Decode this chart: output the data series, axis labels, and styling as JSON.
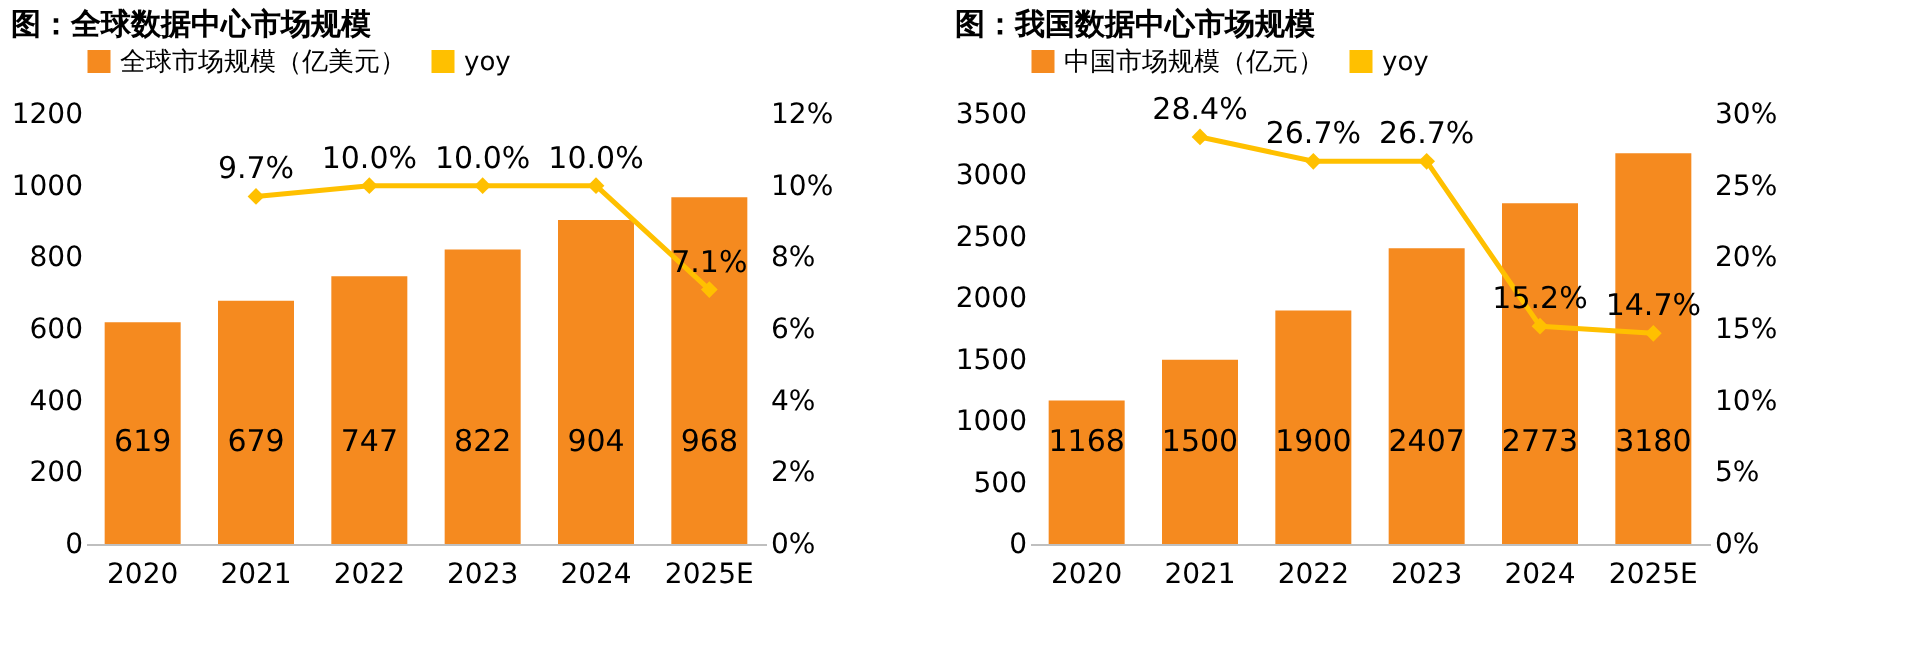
{
  "chart_data": [
    {
      "type": "bar",
      "title": "图：全球数据中心市场规模",
      "categories": [
        "2020",
        "2021",
        "2022",
        "2023",
        "2024",
        "2025E"
      ],
      "series": [
        {
          "name": "全球市场规模（亿美元）",
          "type": "bar",
          "color": "#f58a1f",
          "values": [
            619,
            679,
            747,
            822,
            904,
            968
          ]
        },
        {
          "name": "yoy",
          "type": "line",
          "axis": "y2",
          "color": "#ffc000",
          "values": [
            null,
            9.7,
            10.0,
            10.0,
            10.0,
            7.1
          ],
          "value_labels": [
            null,
            "9.7%",
            "10.0%",
            "10.0%",
            "10.0%",
            "7.1%"
          ]
        }
      ],
      "data_labels": true,
      "ylim": [
        0,
        1200
      ],
      "yticks": [
        0,
        200,
        400,
        600,
        800,
        1000,
        1200
      ],
      "y2lim": [
        0,
        12
      ],
      "y2ticks": [
        {
          "value": 0,
          "label": "0%"
        },
        {
          "value": 2,
          "label": "2%"
        },
        {
          "value": 4,
          "label": "4%"
        },
        {
          "value": 6,
          "label": "6%"
        },
        {
          "value": 8,
          "label": "8%"
        },
        {
          "value": 10,
          "label": "10%"
        },
        {
          "value": 12,
          "label": "12%"
        }
      ],
      "legend": "top",
      "grid": false,
      "marker": "diamond"
    },
    {
      "type": "bar",
      "title": "图：我国数据中心市场规模",
      "categories": [
        "2020",
        "2021",
        "2022",
        "2023",
        "2024",
        "2025E"
      ],
      "series": [
        {
          "name": "中国市场规模（亿元）",
          "type": "bar",
          "color": "#f58a1f",
          "values": [
            1168,
            1500,
            1900,
            2407,
            2773,
            3180
          ]
        },
        {
          "name": "yoy",
          "type": "line",
          "axis": "y2",
          "color": "#ffc000",
          "values": [
            null,
            28.4,
            26.7,
            26.7,
            15.2,
            14.7
          ],
          "value_labels": [
            null,
            "28.4%",
            "26.7%",
            "26.7%",
            "15.2%",
            "14.7%"
          ]
        }
      ],
      "data_labels": true,
      "ylim": [
        0,
        3500
      ],
      "yticks": [
        0,
        500,
        1000,
        1500,
        2000,
        2500,
        3000,
        3500
      ],
      "y2lim": [
        0,
        30
      ],
      "y2ticks": [
        {
          "value": 0,
          "label": "0%"
        },
        {
          "value": 5,
          "label": "5%"
        },
        {
          "value": 10,
          "label": "10%"
        },
        {
          "value": 15,
          "label": "15%"
        },
        {
          "value": 20,
          "label": "20%"
        },
        {
          "value": 25,
          "label": "25%"
        },
        {
          "value": 30,
          "label": "30%"
        }
      ],
      "legend": "top",
      "grid": false,
      "marker": "diamond"
    }
  ]
}
